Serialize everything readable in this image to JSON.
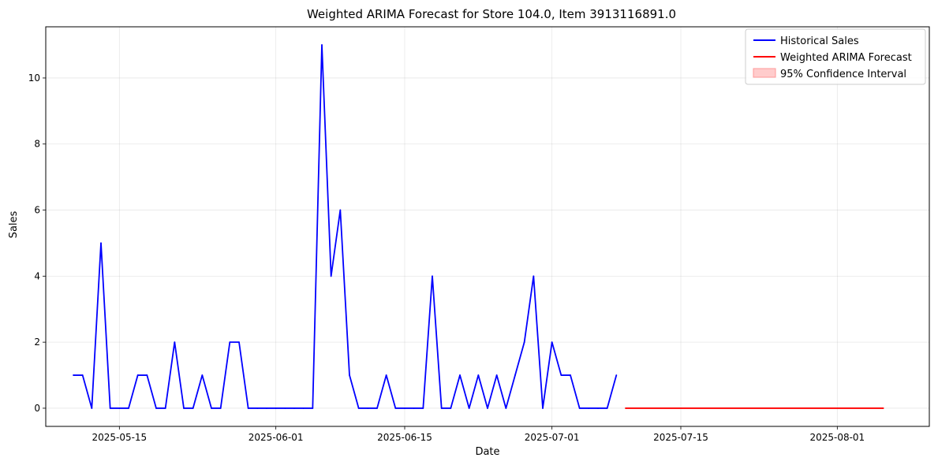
{
  "chart_data": {
    "type": "line",
    "title": "Weighted ARIMA Forecast for Store 104.0, Item 3913116891.0",
    "xlabel": "Date",
    "ylabel": "Sales",
    "x_ticks": [
      "2025-05-15",
      "2025-06-01",
      "2025-06-15",
      "2025-07-01",
      "2025-07-15",
      "2025-08-01"
    ],
    "y_ticks": [
      0,
      2,
      4,
      6,
      8,
      10
    ],
    "xlim": [
      "2025-05-07",
      "2025-08-11"
    ],
    "ylim": [
      -0.55,
      11.55
    ],
    "grid": true,
    "legend_position": "top-right",
    "series": [
      {
        "name": "Historical Sales",
        "color": "#0000ff",
        "style": "line",
        "x": [
          "2025-05-10",
          "2025-05-11",
          "2025-05-12",
          "2025-05-13",
          "2025-05-14",
          "2025-05-15",
          "2025-05-16",
          "2025-05-17",
          "2025-05-18",
          "2025-05-19",
          "2025-05-20",
          "2025-05-21",
          "2025-05-22",
          "2025-05-23",
          "2025-05-24",
          "2025-05-25",
          "2025-05-26",
          "2025-05-27",
          "2025-05-28",
          "2025-05-29",
          "2025-05-30",
          "2025-05-31",
          "2025-06-01",
          "2025-06-02",
          "2025-06-03",
          "2025-06-04",
          "2025-06-05",
          "2025-06-06",
          "2025-06-07",
          "2025-06-08",
          "2025-06-09",
          "2025-06-10",
          "2025-06-11",
          "2025-06-12",
          "2025-06-13",
          "2025-06-14",
          "2025-06-15",
          "2025-06-16",
          "2025-06-17",
          "2025-06-18",
          "2025-06-19",
          "2025-06-20",
          "2025-06-21",
          "2025-06-22",
          "2025-06-23",
          "2025-06-24",
          "2025-06-25",
          "2025-06-26",
          "2025-06-27",
          "2025-06-28",
          "2025-06-29",
          "2025-06-30",
          "2025-07-01",
          "2025-07-02",
          "2025-07-03",
          "2025-07-04",
          "2025-07-05",
          "2025-07-06",
          "2025-07-07",
          "2025-07-08"
        ],
        "values": [
          1,
          1,
          0,
          5,
          0,
          0,
          0,
          1,
          1,
          0,
          0,
          2,
          0,
          0,
          1,
          0,
          0,
          2,
          2,
          0,
          0,
          0,
          0,
          0,
          0,
          0,
          0,
          11,
          4,
          6,
          1,
          0,
          0,
          0,
          1,
          0,
          0,
          0,
          0,
          4,
          0,
          0,
          1,
          0,
          1,
          0,
          1,
          0,
          1,
          2,
          4,
          0,
          2,
          1,
          1,
          0,
          0,
          0,
          0,
          1
        ]
      },
      {
        "name": "Weighted ARIMA Forecast",
        "color": "#ff0000",
        "style": "line",
        "x": [
          "2025-07-09",
          "2025-08-06"
        ],
        "values": [
          0,
          0
        ]
      },
      {
        "name": "95% Confidence Interval",
        "color": "#ffcccc",
        "border_color": "#ff9999",
        "style": "band",
        "x": [
          "2025-07-09",
          "2025-08-06"
        ],
        "lower": [
          0,
          0
        ],
        "upper": [
          0,
          0
        ]
      }
    ]
  }
}
